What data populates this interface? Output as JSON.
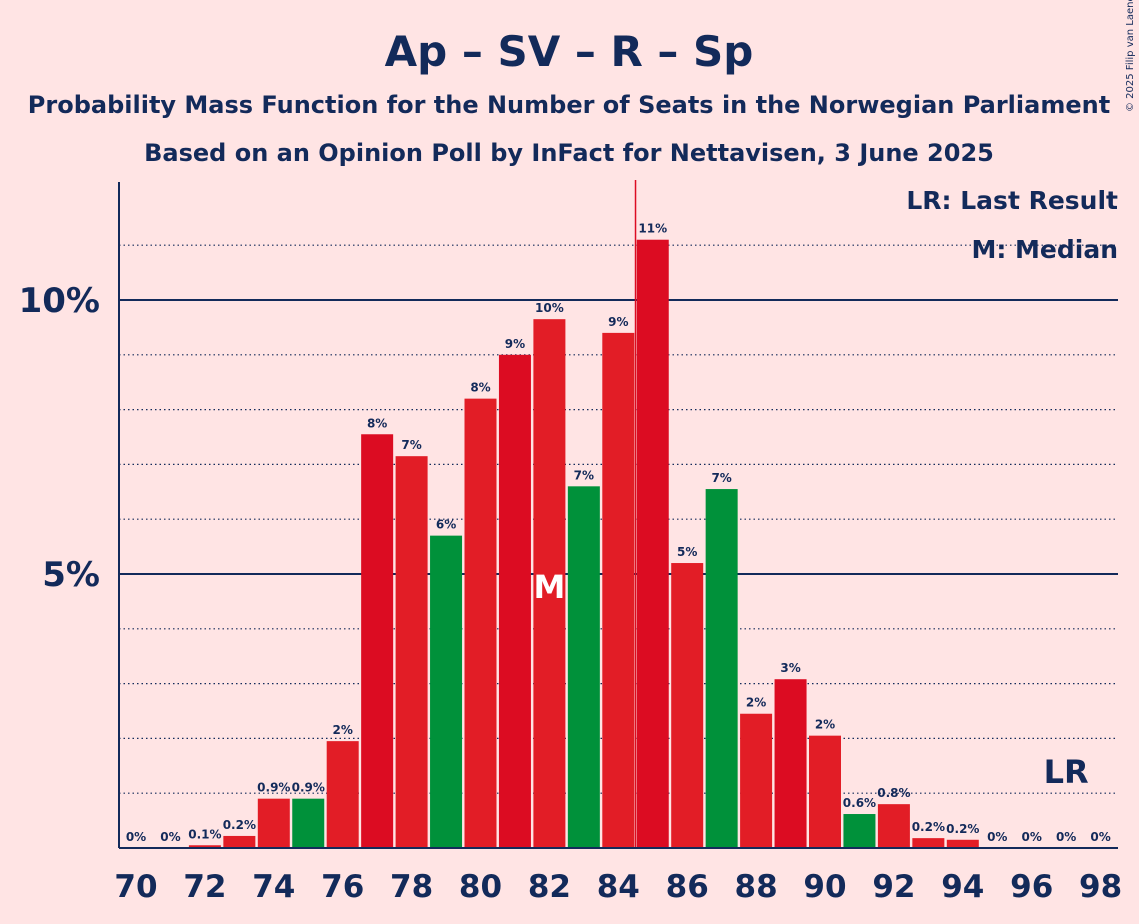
{
  "chart_data": {
    "type": "bar",
    "title": "Ap – SV – R – Sp",
    "subtitle": "Probability Mass Function for the Number of Seats in the Norwegian Parliament",
    "subtitle2": "Based on an Opinion Poll by InFact for Nettavisen, 3 June 2025",
    "copyright": "© 2025 Filip van Laenen",
    "xlabel": "",
    "ylabel": "",
    "ylim": [
      0,
      12
    ],
    "y_ticks": [
      {
        "value": 5,
        "label": "5%"
      },
      {
        "value": 10,
        "label": "10%"
      }
    ],
    "x_tick_labels": [
      "70",
      "72",
      "74",
      "76",
      "78",
      "80",
      "82",
      "84",
      "86",
      "88",
      "90",
      "92",
      "94",
      "96",
      "98"
    ],
    "legend": [
      "LR: Last Result",
      "M: Median"
    ],
    "last_result_seats": 97,
    "last_result_label": "LR",
    "median_seats": 82,
    "median_label": "M",
    "majority_line_seats": 84.5,
    "colors": {
      "red": "#e21d26",
      "darkred": "#dc0c22",
      "green": "#00913a",
      "navy": "#132a5a",
      "background": "#ffe4e4"
    },
    "bars": [
      {
        "seats": 70,
        "value": 0.0,
        "label": "0%",
        "color": "red"
      },
      {
        "seats": 71,
        "value": 0.0,
        "label": "0%",
        "color": "red"
      },
      {
        "seats": 72,
        "value": 0.05,
        "label": "0.1%",
        "color": "red"
      },
      {
        "seats": 73,
        "value": 0.22,
        "label": "0.2%",
        "color": "red"
      },
      {
        "seats": 74,
        "value": 0.9,
        "label": "0.9%",
        "color": "red"
      },
      {
        "seats": 75,
        "value": 0.9,
        "label": "0.9%",
        "color": "green"
      },
      {
        "seats": 76,
        "value": 1.95,
        "label": "2%",
        "color": "red"
      },
      {
        "seats": 77,
        "value": 7.55,
        "label": "8%",
        "color": "darkred"
      },
      {
        "seats": 78,
        "value": 7.15,
        "label": "7%",
        "color": "red"
      },
      {
        "seats": 79,
        "value": 5.7,
        "label": "6%",
        "color": "green"
      },
      {
        "seats": 80,
        "value": 8.2,
        "label": "8%",
        "color": "red"
      },
      {
        "seats": 81,
        "value": 9.0,
        "label": "9%",
        "color": "darkred"
      },
      {
        "seats": 82,
        "value": 9.65,
        "label": "10%",
        "color": "red"
      },
      {
        "seats": 83,
        "value": 6.6,
        "label": "7%",
        "color": "green"
      },
      {
        "seats": 84,
        "value": 9.4,
        "label": "9%",
        "color": "red"
      },
      {
        "seats": 85,
        "value": 11.1,
        "label": "11%",
        "color": "darkred"
      },
      {
        "seats": 86,
        "value": 5.2,
        "label": "5%",
        "color": "red"
      },
      {
        "seats": 87,
        "value": 6.55,
        "label": "7%",
        "color": "green"
      },
      {
        "seats": 88,
        "value": 2.45,
        "label": "2%",
        "color": "red"
      },
      {
        "seats": 89,
        "value": 3.08,
        "label": "3%",
        "color": "darkred"
      },
      {
        "seats": 90,
        "value": 2.05,
        "label": "2%",
        "color": "red"
      },
      {
        "seats": 91,
        "value": 0.62,
        "label": "0.6%",
        "color": "green"
      },
      {
        "seats": 92,
        "value": 0.8,
        "label": "0.8%",
        "color": "red"
      },
      {
        "seats": 93,
        "value": 0.18,
        "label": "0.2%",
        "color": "red"
      },
      {
        "seats": 94,
        "value": 0.15,
        "label": "0.2%",
        "color": "red"
      },
      {
        "seats": 95,
        "value": 0.0,
        "label": "0%",
        "color": "red"
      },
      {
        "seats": 96,
        "value": 0.0,
        "label": "0%",
        "color": "red"
      },
      {
        "seats": 97,
        "value": 0.0,
        "label": "0%",
        "color": "red"
      },
      {
        "seats": 98,
        "value": 0.0,
        "label": "0%",
        "color": "red"
      }
    ]
  }
}
